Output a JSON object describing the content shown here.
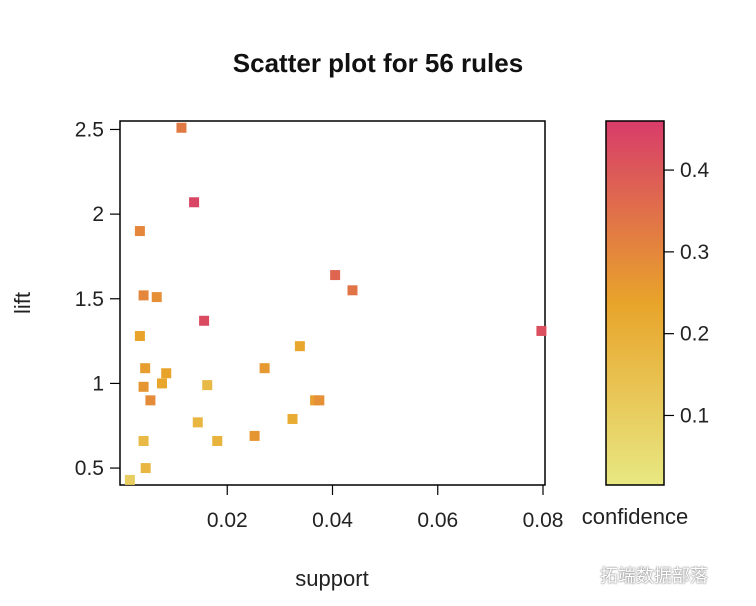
{
  "chart_data": {
    "type": "scatter",
    "title": "Scatter plot for 56 rules",
    "xlabel": "support",
    "ylabel": "lift",
    "xlim": [
      0.0,
      0.08
    ],
    "ylim": [
      0.4,
      2.55
    ],
    "x_ticks": [
      0.02,
      0.04,
      0.06,
      0.08
    ],
    "x_tick_labels": [
      "0.02",
      "0.04",
      "0.06",
      "0.08"
    ],
    "y_ticks": [
      0.5,
      1.0,
      1.5,
      2.0,
      2.5
    ],
    "y_tick_labels": [
      "0.5",
      "1",
      "1.5",
      "2",
      "2.5"
    ],
    "grid": false,
    "color_scale": {
      "label": "confidence",
      "range": [
        0.015,
        0.46
      ],
      "ticks": [
        0.1,
        0.2,
        0.3,
        0.4
      ],
      "tick_labels": [
        "0.1",
        "0.2",
        "0.3",
        "0.4"
      ],
      "low_color": "#e8e882",
      "mid_color": "#e8a42a",
      "high_color": "#d83c6a"
    },
    "points": [
      {
        "support": 0.0113,
        "lift": 2.51,
        "confidence": 0.33
      },
      {
        "support": 0.0137,
        "lift": 2.07,
        "confidence": 0.44
      },
      {
        "support": 0.0034,
        "lift": 1.9,
        "confidence": 0.3
      },
      {
        "support": 0.0041,
        "lift": 1.52,
        "confidence": 0.3
      },
      {
        "support": 0.0066,
        "lift": 1.51,
        "confidence": 0.28
      },
      {
        "support": 0.0156,
        "lift": 1.37,
        "confidence": 0.43
      },
      {
        "support": 0.0034,
        "lift": 1.28,
        "confidence": 0.24
      },
      {
        "support": 0.0405,
        "lift": 1.64,
        "confidence": 0.37
      },
      {
        "support": 0.0438,
        "lift": 1.55,
        "confidence": 0.34
      },
      {
        "support": 0.0797,
        "lift": 1.31,
        "confidence": 0.42
      },
      {
        "support": 0.0338,
        "lift": 1.22,
        "confidence": 0.23
      },
      {
        "support": 0.0044,
        "lift": 1.09,
        "confidence": 0.25
      },
      {
        "support": 0.0084,
        "lift": 1.06,
        "confidence": 0.24
      },
      {
        "support": 0.0076,
        "lift": 1.0,
        "confidence": 0.23
      },
      {
        "support": 0.0041,
        "lift": 0.98,
        "confidence": 0.27
      },
      {
        "support": 0.0054,
        "lift": 0.9,
        "confidence": 0.29
      },
      {
        "support": 0.0162,
        "lift": 0.99,
        "confidence": 0.17
      },
      {
        "support": 0.0271,
        "lift": 1.09,
        "confidence": 0.26
      },
      {
        "support": 0.0367,
        "lift": 0.9,
        "confidence": 0.25
      },
      {
        "support": 0.0375,
        "lift": 0.9,
        "confidence": 0.28
      },
      {
        "support": 0.0324,
        "lift": 0.79,
        "confidence": 0.21
      },
      {
        "support": 0.0252,
        "lift": 0.69,
        "confidence": 0.27
      },
      {
        "support": 0.0144,
        "lift": 0.77,
        "confidence": 0.18
      },
      {
        "support": 0.0181,
        "lift": 0.66,
        "confidence": 0.19
      },
      {
        "support": 0.0041,
        "lift": 0.66,
        "confidence": 0.17
      },
      {
        "support": 0.0045,
        "lift": 0.5,
        "confidence": 0.18
      },
      {
        "support": 0.0015,
        "lift": 0.43,
        "confidence": 0.1
      }
    ]
  },
  "watermark": "拓端数据部落"
}
